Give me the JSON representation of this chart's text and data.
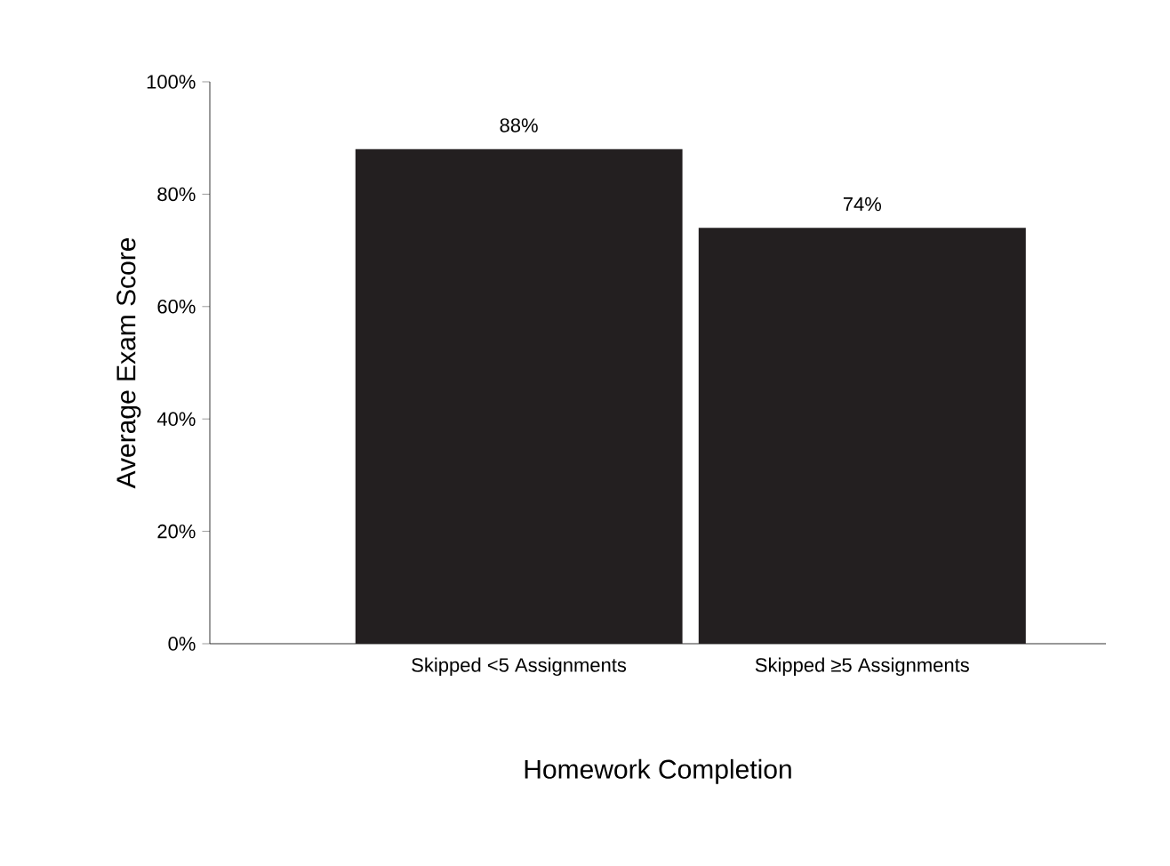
{
  "chart_data": {
    "type": "bar",
    "xlabel": "Homework Completion",
    "ylabel": "Average Exam Score",
    "categories": [
      "Skipped <5 Assignments",
      "Skipped ≥5 Assignments"
    ],
    "values": [
      88,
      74
    ],
    "value_labels": [
      "88%",
      "74%"
    ],
    "color": "#231f20",
    "ylim": [
      0,
      100
    ],
    "yticks": [
      {
        "value": 0,
        "label": "0%"
      },
      {
        "value": 20,
        "label": "20%"
      },
      {
        "value": 40,
        "label": "40%"
      },
      {
        "value": 60,
        "label": "60%"
      },
      {
        "value": 80,
        "label": "80%"
      },
      {
        "value": 100,
        "label": "100%"
      }
    ],
    "grid": false
  }
}
